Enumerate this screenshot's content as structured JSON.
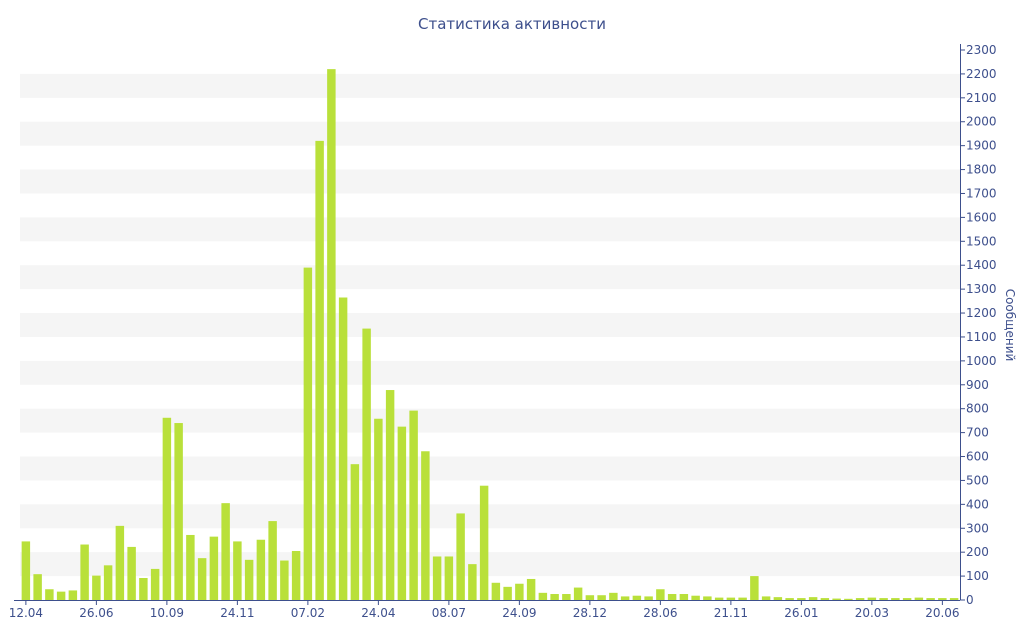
{
  "chart_data": {
    "type": "bar",
    "title": "Статистика активности",
    "ylabel": "Сообщений",
    "xlabel": "",
    "ylim": [
      0,
      2300
    ],
    "yticks": [
      0,
      100,
      200,
      300,
      400,
      500,
      600,
      700,
      800,
      900,
      1000,
      1100,
      1200,
      1300,
      1400,
      1500,
      1600,
      1700,
      1800,
      1900,
      2000,
      2100,
      2200,
      2300
    ],
    "y_axis_side": "right",
    "grid": "alternating horizontal bands",
    "legend": "none",
    "bar_color": "#b9e03a",
    "axis_color": "#3d4f8c",
    "band_color": "#f5f5f5",
    "xtick_labels": [
      {
        "index": 0,
        "label": "12.04"
      },
      {
        "index": 6,
        "label": "26.06"
      },
      {
        "index": 12,
        "label": "10.09"
      },
      {
        "index": 18,
        "label": "24.11"
      },
      {
        "index": 24,
        "label": "07.02"
      },
      {
        "index": 30,
        "label": "24.04"
      },
      {
        "index": 36,
        "label": "08.07"
      },
      {
        "index": 42,
        "label": "24.09"
      },
      {
        "index": 48,
        "label": "28.12"
      },
      {
        "index": 54,
        "label": "28.06"
      },
      {
        "index": 60,
        "label": "21.11"
      },
      {
        "index": 66,
        "label": "26.01"
      },
      {
        "index": 72,
        "label": "20.03"
      },
      {
        "index": 78,
        "label": "20.06"
      }
    ],
    "values": [
      245,
      108,
      45,
      35,
      40,
      232,
      102,
      145,
      310,
      222,
      92,
      130,
      762,
      740,
      272,
      175,
      265,
      405,
      245,
      168,
      252,
      330,
      165,
      205,
      1390,
      1920,
      2220,
      1265,
      568,
      1135,
      758,
      878,
      725,
      792,
      622,
      182,
      182,
      362,
      150,
      478,
      72,
      55,
      68,
      88,
      30,
      25,
      25,
      52,
      20,
      20,
      30,
      15,
      18,
      15,
      45,
      25,
      25,
      18,
      15,
      10,
      10,
      10,
      100,
      15,
      12,
      8,
      8,
      12,
      8,
      6,
      5,
      8,
      10,
      8,
      8,
      8,
      10,
      8,
      8,
      8
    ]
  }
}
